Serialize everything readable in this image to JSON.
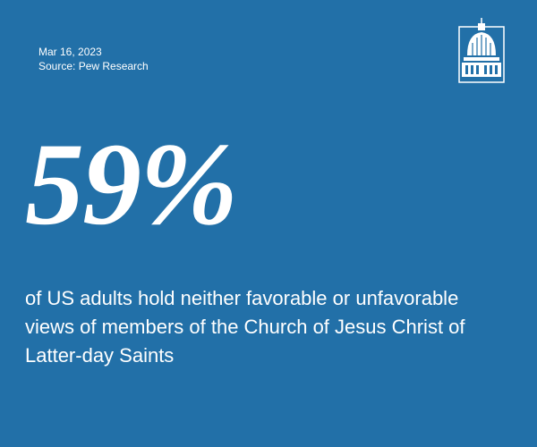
{
  "header": {
    "date": "Mar 16, 2023",
    "source": "Source: Pew Research"
  },
  "stat": {
    "value": "59%",
    "description": "of US adults hold neither favorable or unfavorable views of members of the Church of Jesus Christ of Latter-day Saints"
  }
}
